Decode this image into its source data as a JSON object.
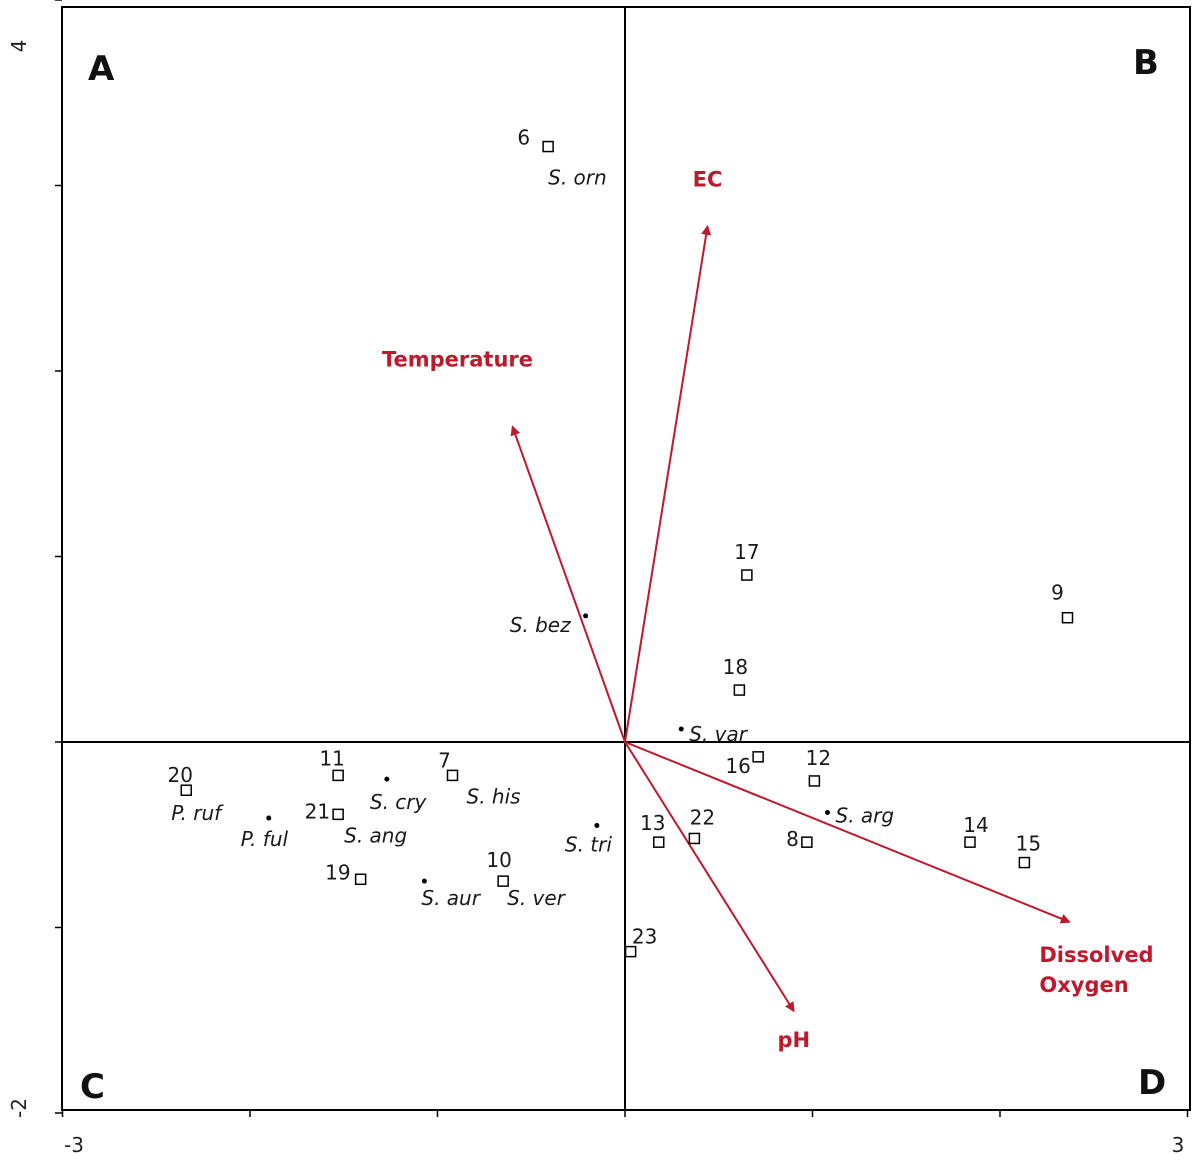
{
  "chart_data": {
    "type": "scatter",
    "title": "",
    "xlabel": "",
    "ylabel": "",
    "xlim": [
      -3,
      3
    ],
    "ylim": [
      -2,
      4
    ],
    "x_tick_labels": [
      "-3",
      "3"
    ],
    "y_tick_labels": [
      "4",
      "-2"
    ],
    "quadrant_labels": {
      "top_left": "A",
      "top_right": "B",
      "bottom_left": "C",
      "bottom_right": "D"
    },
    "grid": false,
    "origin_axes": true,
    "vector_color": "#c0182c",
    "sites": [
      {
        "label": "6",
        "x": -0.41,
        "y": 3.21
      },
      {
        "label": "17",
        "x": 0.65,
        "y": 0.9
      },
      {
        "label": "9",
        "x": 2.36,
        "y": 0.67
      },
      {
        "label": "18",
        "x": 0.61,
        "y": 0.28
      },
      {
        "label": "16",
        "x": 0.71,
        "y": -0.08
      },
      {
        "label": "12",
        "x": 1.01,
        "y": -0.21
      },
      {
        "label": "11",
        "x": -1.53,
        "y": -0.18
      },
      {
        "label": "7",
        "x": -0.92,
        "y": -0.18
      },
      {
        "label": "20",
        "x": -2.34,
        "y": -0.26
      },
      {
        "label": "21",
        "x": -1.53,
        "y": -0.39
      },
      {
        "label": "13",
        "x": 0.18,
        "y": -0.54
      },
      {
        "label": "22",
        "x": 0.37,
        "y": -0.52
      },
      {
        "label": "8",
        "x": 0.97,
        "y": -0.54
      },
      {
        "label": "14",
        "x": 1.84,
        "y": -0.54
      },
      {
        "label": "15",
        "x": 2.13,
        "y": -0.65
      },
      {
        "label": "19",
        "x": -1.41,
        "y": -0.74
      },
      {
        "label": "10",
        "x": -0.65,
        "y": -0.75
      },
      {
        "label": "23",
        "x": 0.03,
        "y": -1.13
      }
    ],
    "species": [
      {
        "label": "S. orn",
        "x": -0.41,
        "y": 3.21
      },
      {
        "label": "S. bez",
        "x": -0.21,
        "y": 0.68
      },
      {
        "label": "S. var",
        "x": 0.3,
        "y": 0.07
      },
      {
        "label": "S. his",
        "x": -0.92,
        "y": -0.18
      },
      {
        "label": "S. cry",
        "x": -1.27,
        "y": -0.2
      },
      {
        "label": "P. ruf",
        "x": -2.34,
        "y": -0.26
      },
      {
        "label": "P. ful",
        "x": -1.9,
        "y": -0.41
      },
      {
        "label": "S. ang",
        "x": -1.53,
        "y": -0.39
      },
      {
        "label": "S. arg",
        "x": 1.08,
        "y": -0.38
      },
      {
        "label": "S. tri",
        "x": -0.15,
        "y": -0.45
      },
      {
        "label": "S. aur",
        "x": -1.07,
        "y": -0.75
      },
      {
        "label": "S. ver",
        "x": -0.65,
        "y": -0.75
      }
    ],
    "vectors": [
      {
        "label": "EC",
        "x": 0.44,
        "y": 2.78
      },
      {
        "label": "Temperature",
        "x": -0.6,
        "y": 1.7
      },
      {
        "label": "Dissolved Oxygen",
        "x": 2.37,
        "y": -0.97
      },
      {
        "label": "pH",
        "x": 0.9,
        "y": -1.45
      }
    ]
  }
}
